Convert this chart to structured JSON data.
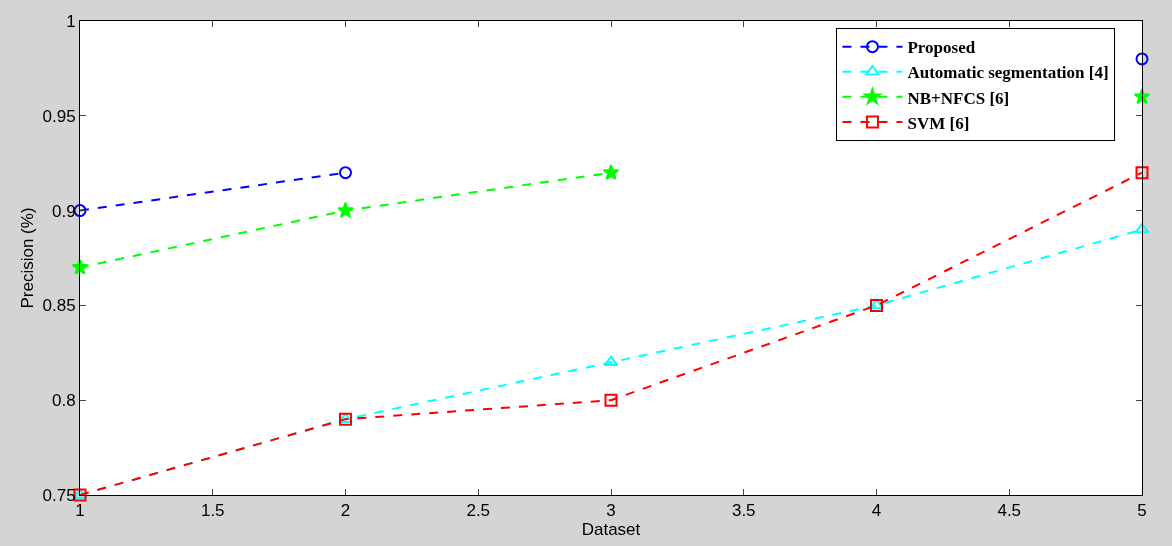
{
  "chart_data": {
    "type": "line",
    "xlabel": "Dataset",
    "ylabel": "Precision (%)",
    "x": [
      1,
      2,
      3,
      4,
      5
    ],
    "series": [
      {
        "name": "Proposed",
        "color": "#0000ff",
        "marker": "circle",
        "values": [
          0.9,
          0.92,
          null,
          null,
          0.98
        ]
      },
      {
        "name": "Automatic segmentation [4]",
        "color": "#00ffff",
        "marker": "triangle",
        "values": [
          0.75,
          0.79,
          0.82,
          0.85,
          0.89
        ]
      },
      {
        "name": "NB+NFCS [6]",
        "color": "#00ff00",
        "marker": "star",
        "values": [
          0.87,
          0.9,
          0.92,
          null,
          0.96
        ]
      },
      {
        "name": "SVM [6]",
        "color": "#ff0000",
        "marker": "square",
        "values": [
          0.75,
          0.79,
          0.8,
          0.85,
          0.92
        ]
      }
    ],
    "xlim": [
      1,
      5
    ],
    "xticks": [
      1,
      {
        "value": 1.5,
        "label": "1.5"
      },
      2,
      {
        "value": 2.5,
        "label": "2.5"
      },
      3,
      {
        "value": 3.5,
        "label": "3.5"
      },
      4,
      {
        "value": 4.5,
        "label": "4.5"
      },
      5
    ],
    "ylim": [
      0.75,
      1
    ],
    "yticks": [
      0.75,
      0.8,
      0.85,
      0.9,
      0.95,
      1
    ],
    "line_style": "dashed",
    "legend": "top right"
  }
}
